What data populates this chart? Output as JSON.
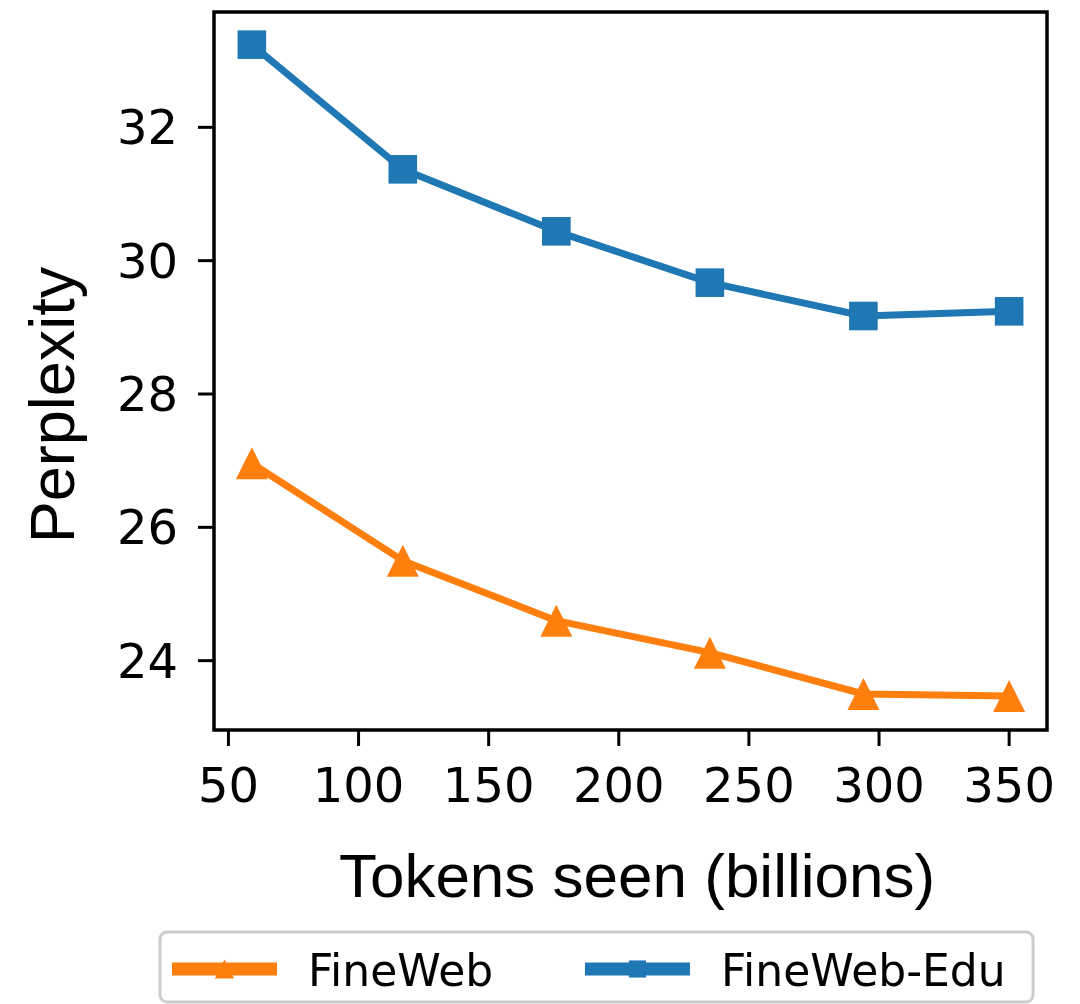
{
  "chart_data": {
    "type": "line",
    "xlabel": "Tokens seen (billions)",
    "ylabel": "Perplexity",
    "x": [
      59,
      117,
      176,
      235,
      294,
      350
    ],
    "series": [
      {
        "name": "FineWeb",
        "color": "#ff7f0e",
        "marker": "triangle",
        "values": [
          26.96,
          25.5,
          24.6,
          24.12,
          23.5,
          23.47
        ]
      },
      {
        "name": "FineWeb-Edu",
        "color": "#1f77b4",
        "marker": "square",
        "values": [
          33.24,
          31.37,
          30.44,
          29.67,
          29.17,
          29.24
        ]
      }
    ],
    "xlim": [
      44.45,
      364.55
    ],
    "ylim": [
      22.96,
      33.73
    ],
    "xticks": [
      50,
      100,
      150,
      200,
      250,
      300,
      350
    ],
    "yticks": [
      24,
      26,
      28,
      30,
      32
    ],
    "legend": "bottom"
  }
}
